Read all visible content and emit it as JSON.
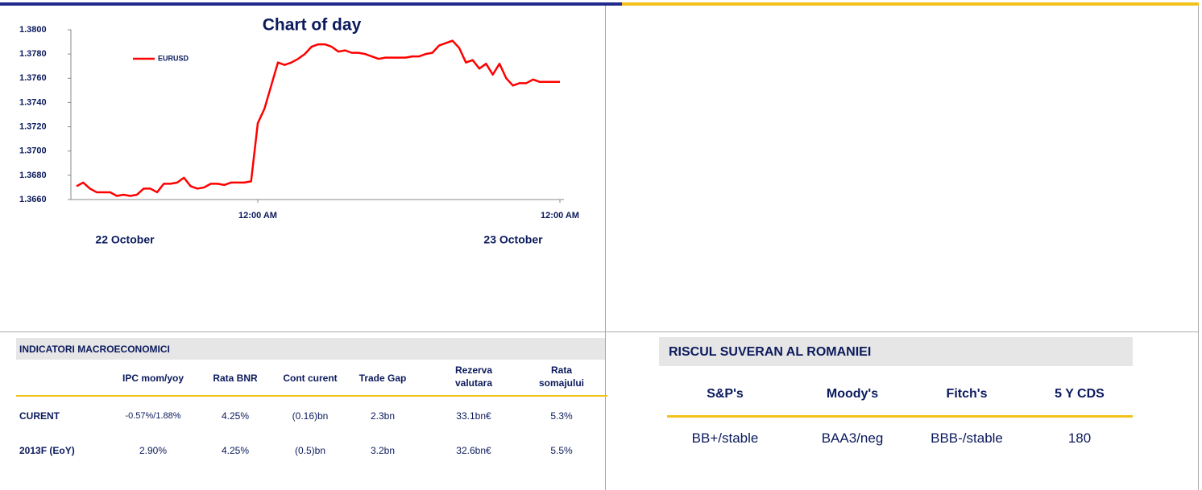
{
  "chart_data": {
    "type": "line",
    "title": "Chart of day",
    "categories": [
      null,
      null,
      null,
      null,
      null,
      null,
      null,
      null,
      null,
      null,
      null,
      null,
      null,
      null,
      null,
      null,
      null,
      null,
      null,
      null,
      null,
      null,
      null,
      null,
      null,
      null,
      null,
      "12:00 AM",
      null,
      null,
      null,
      null,
      null,
      null,
      null,
      null,
      null,
      null,
      null,
      null,
      null,
      null,
      null,
      null,
      null,
      null,
      null,
      null,
      null,
      null,
      null,
      null,
      null,
      null,
      null,
      null,
      null,
      null,
      null,
      null,
      null,
      null,
      null,
      null,
      null,
      null,
      null,
      null,
      null,
      null,
      null,
      null,
      "12:00 AM"
    ],
    "annotations": [
      "22 October",
      "23 October"
    ],
    "series": [
      {
        "name": "EURUSD",
        "color": "#ff0000",
        "values": [
          1.3671,
          1.3674,
          1.3669,
          1.3666,
          1.3666,
          1.3666,
          1.3663,
          1.3664,
          1.3663,
          1.3664,
          1.3669,
          1.3669,
          1.3666,
          1.3673,
          1.3673,
          1.3674,
          1.3678,
          1.3671,
          1.3669,
          1.367,
          1.3673,
          1.3673,
          1.3672,
          1.3674,
          1.3674,
          1.3674,
          1.3675,
          1.3723,
          1.3735,
          1.3754,
          1.3773,
          1.3771,
          1.3773,
          1.3776,
          1.378,
          1.3786,
          1.3788,
          1.3788,
          1.3786,
          1.3782,
          1.3783,
          1.3781,
          1.3781,
          1.378,
          1.3778,
          1.3776,
          1.3777,
          1.3777,
          1.3777,
          1.3777,
          1.3778,
          1.3778,
          1.378,
          1.3781,
          1.3787,
          1.3789,
          1.3791,
          1.3785,
          1.3773,
          1.3775,
          1.3768,
          1.3772,
          1.3763,
          1.3772,
          1.376,
          1.3754,
          1.3756,
          1.3756,
          1.3759,
          1.3757,
          1.3757,
          1.3757,
          1.3757
        ]
      }
    ],
    "ylim": [
      1.366,
      1.38
    ],
    "yticks": [
      {
        "value": 1.366,
        "label": "1.3660"
      },
      {
        "value": 1.368,
        "label": "1.3680"
      },
      {
        "value": 1.37,
        "label": "1.3700"
      },
      {
        "value": 1.372,
        "label": "1.3720"
      },
      {
        "value": 1.374,
        "label": "1.3740"
      },
      {
        "value": 1.376,
        "label": "1.3760"
      },
      {
        "value": 1.378,
        "label": "1.3780"
      },
      {
        "value": 1.38,
        "label": "1.3800"
      }
    ],
    "grid": false,
    "legend": "top-left"
  },
  "macro": {
    "title": "INDICATORI MACROECONOMICI",
    "headers": [
      "",
      "IPC mom/yoy",
      "Rata BNR",
      "Cont curent",
      "Trade Gap",
      "Rezerva valutara",
      "Rata somajului"
    ],
    "rows": [
      [
        "CURENT",
        "-0.57%/1.88%",
        "4.25%",
        "(0.16)bn",
        "2.3bn",
        "33.1bn€",
        "5.3%"
      ],
      [
        "2013F (EoY)",
        "2.90%",
        "4.25%",
        "(0.5)bn",
        "3.2bn",
        "32.6bn€",
        "5.5%"
      ]
    ]
  },
  "risk": {
    "title": "RISCUL SUVERAN AL ROMANIEI",
    "headers": [
      "S&P's",
      "Moody's",
      "Fitch's",
      "5 Y CDS"
    ],
    "rows": [
      [
        "BB+/stable",
        "BAA3/neg",
        "BBB-/stable",
        "180"
      ]
    ]
  }
}
